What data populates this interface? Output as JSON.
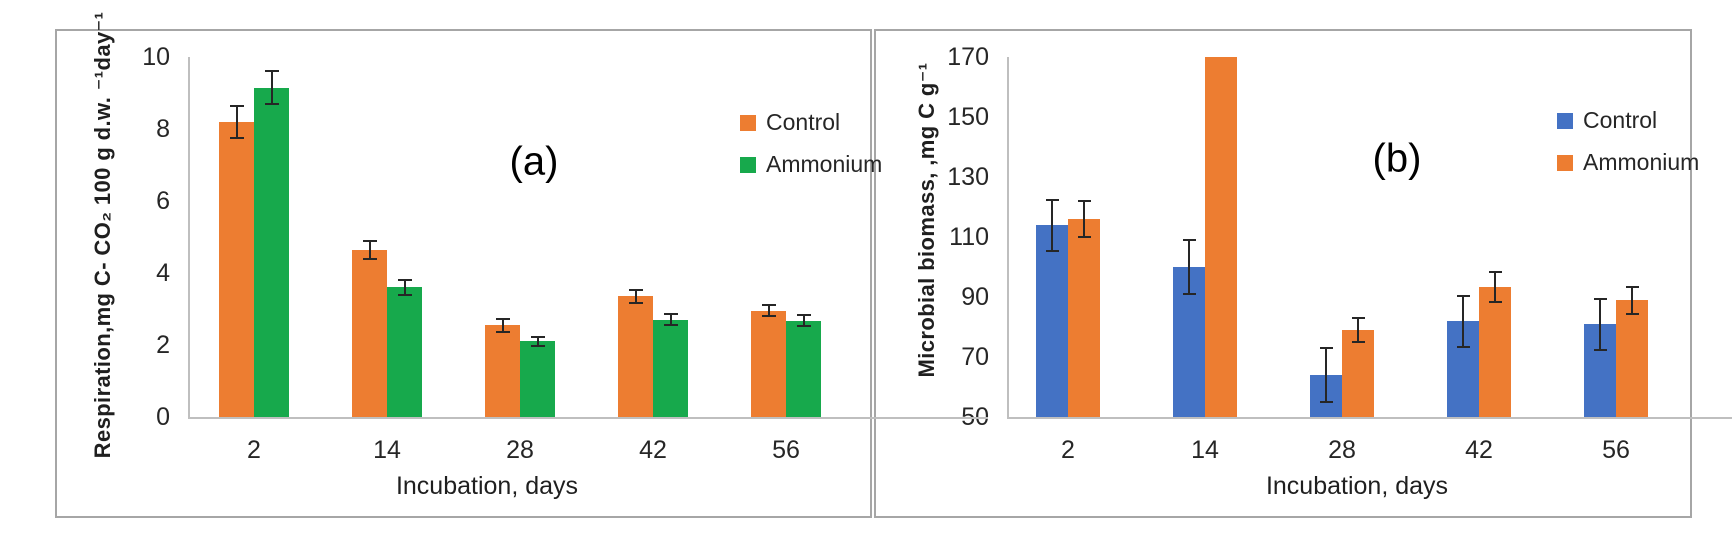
{
  "figure_labels": {
    "panel_a": "(a)",
    "panel_b": "(b)"
  },
  "colors": {
    "control_a": "#ED7D31",
    "ammonium_a": "#17A94C",
    "control_b": "#4472C4",
    "ammonium_b": "#ED7D31",
    "axis_line": "#BFBFBF",
    "panel_border": "#A6A6A6",
    "error_bar": "#262626"
  },
  "chart_data": [
    {
      "type": "bar",
      "panel_label": "(a)",
      "title": "",
      "xlabel": "Incubation, days",
      "ylabel": "Respiration,mg C- CO₂ 100 g d.w. ⁻¹day⁻¹",
      "categories": [
        "2",
        "14",
        "28",
        "42",
        "56"
      ],
      "ylim": [
        0,
        10
      ],
      "yticks": [
        0,
        2,
        4,
        6,
        8,
        10
      ],
      "grid": false,
      "legend_position": "upper-right-inside",
      "series": [
        {
          "name": "Control",
          "color": "#ED7D31",
          "values": [
            8.2,
            4.65,
            2.55,
            3.35,
            2.95
          ],
          "errors": [
            0.45,
            0.25,
            0.18,
            0.17,
            0.15
          ]
        },
        {
          "name": "Ammonium",
          "color": "#17A94C",
          "values": [
            9.15,
            3.6,
            2.1,
            2.7,
            2.68
          ],
          "errors": [
            0.45,
            0.2,
            0.13,
            0.15,
            0.14
          ]
        }
      ]
    },
    {
      "type": "bar",
      "panel_label": "(b)",
      "title": "",
      "xlabel": "Incubation, days",
      "ylabel": "Microbial biomass, ,mg C g⁻¹",
      "categories": [
        "2",
        "14",
        "28",
        "42",
        "56"
      ],
      "ylim": [
        50,
        170
      ],
      "yticks": [
        50,
        70,
        90,
        110,
        130,
        150,
        170
      ],
      "grid": false,
      "legend_position": "upper-right-inside",
      "series": [
        {
          "name": "Control",
          "color": "#4472C4",
          "values": [
            114,
            100,
            64,
            82,
            81
          ],
          "errors": [
            8.5,
            9,
            9,
            8.5,
            8.5
          ]
        },
        {
          "name": "Ammonium",
          "color": "#ED7D31",
          "values": [
            116,
            170,
            79,
            93.5,
            89
          ],
          "errors": [
            6,
            0,
            4,
            5,
            4.5
          ]
        }
      ]
    }
  ]
}
